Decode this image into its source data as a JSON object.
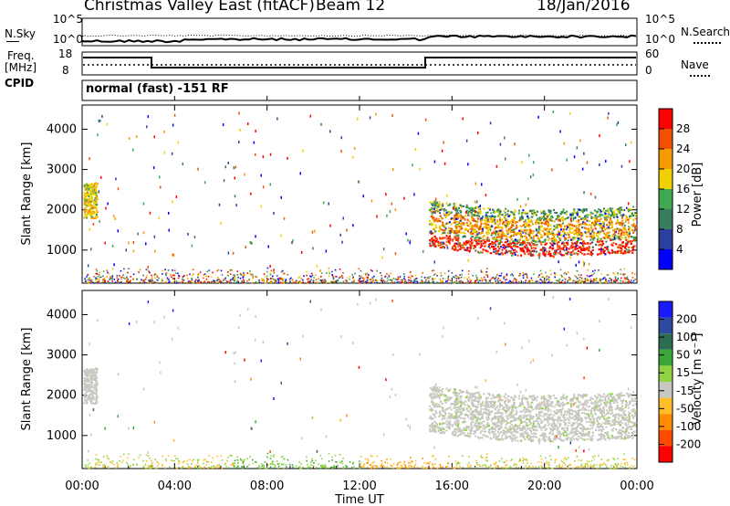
{
  "header": {
    "title": "Christmas Valley East (fitACF)",
    "beam": "Beam 12",
    "date": "18/Jan/2016"
  },
  "panels": {
    "nsky": {
      "label": "N.Sky",
      "ticks": [
        "10^5",
        "10^0"
      ]
    },
    "nsearch": {
      "label": "N.Search",
      "ticks": [
        "10^5",
        "10^0"
      ]
    },
    "freq": {
      "label_line1": "Freq.",
      "label_line2": "[MHz]",
      "ticks": [
        "18",
        "8"
      ]
    },
    "nave": {
      "label": "Nave",
      "ticks": [
        "60",
        "0"
      ]
    },
    "cpid": {
      "label": "CPID",
      "value": "normal (fast) -151 RF"
    }
  },
  "colors": {
    "power_scale": [
      "#0000ff",
      "#2a3f9e",
      "#3a7d5e",
      "#3fa850",
      "#f0d000",
      "#f59a00",
      "#f05000",
      "#ff0000"
    ],
    "velocity_scale": [
      "#ff0000",
      "#ff4b00",
      "#ff8c00",
      "#ffbd2a",
      "#c8c8c0",
      "#8fd440",
      "#3aa63a",
      "#2b6c52",
      "#2b4aa0",
      "#1a1aff"
    ],
    "ground_scatter": "#c8c8c0"
  },
  "chart_data": [
    {
      "type": "heatmap",
      "name": "power",
      "xlabel": "",
      "ylabel": "Slant Range [km]",
      "xlim": [
        "00:00",
        "24:00"
      ],
      "ylim": [
        180,
        4600
      ],
      "yticks": [
        1000,
        2000,
        3000,
        4000
      ],
      "xticks": [
        "00:00",
        "04:00",
        "08:00",
        "12:00",
        "16:00",
        "20:00",
        "00:00"
      ],
      "colorbar": {
        "label": "Power [dB]",
        "ticks": [
          "4",
          "8",
          "12",
          "16",
          "20",
          "24",
          "28"
        ],
        "range": [
          0,
          30
        ]
      },
      "features": [
        {
          "time_hours": [
            0.1,
            0.7
          ],
          "range_km": [
            1800,
            2800
          ],
          "power_db": [
            14,
            22
          ]
        },
        {
          "time_hours": [
            15.0,
            24.0
          ],
          "range_km": [
            1000,
            2400
          ],
          "power_db": [
            8,
            30
          ]
        },
        {
          "time_hours": [
            0.0,
            24.0
          ],
          "range_km": [
            180,
            500
          ],
          "power_db": [
            2,
            20
          ]
        }
      ]
    },
    {
      "type": "heatmap",
      "name": "velocity",
      "xlabel": "Time UT",
      "ylabel": "Slant Range [km]",
      "xlim": [
        "00:00",
        "24:00"
      ],
      "ylim": [
        180,
        4600
      ],
      "yticks": [
        1000,
        2000,
        3000,
        4000
      ],
      "xticks": [
        "00:00",
        "04:00",
        "08:00",
        "12:00",
        "16:00",
        "20:00",
        "00:00"
      ],
      "colorbar": {
        "label": "Velocity [m s⁻¹]",
        "ticks": [
          "200",
          "100",
          "50",
          "15",
          "-15",
          "-50",
          "-100",
          "-200"
        ],
        "range": [
          -250,
          250
        ]
      },
      "features": [
        {
          "time_hours": [
            0.1,
            0.7
          ],
          "range_km": [
            1800,
            2800
          ],
          "velocity_ms": [
            -15,
            15
          ]
        },
        {
          "time_hours": [
            15.0,
            24.0
          ],
          "range_km": [
            1000,
            2400
          ],
          "velocity_ms": [
            -15,
            15
          ]
        },
        {
          "time_hours": [
            6.5,
            12.0
          ],
          "range_km": [
            180,
            500
          ],
          "velocity_ms": [
            15,
            60
          ]
        },
        {
          "time_hours": [
            12.0,
            16.0
          ],
          "range_km": [
            180,
            500
          ],
          "velocity_ms": [
            -60,
            -15
          ]
        }
      ]
    }
  ]
}
